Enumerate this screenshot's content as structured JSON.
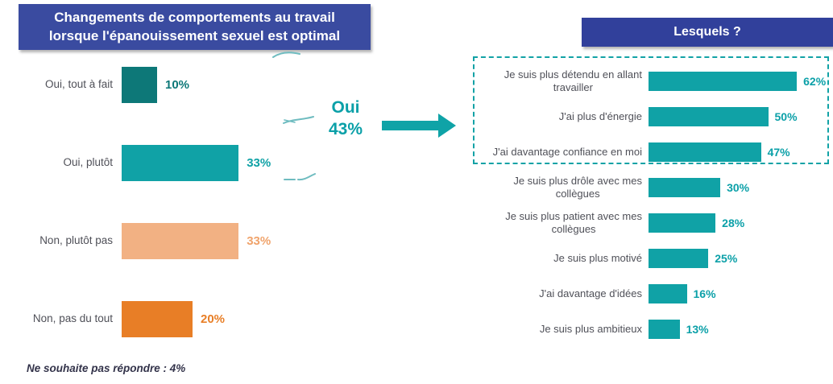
{
  "colors": {
    "header_blue_left": "#3a4ba0",
    "header_blue_right": "#31409b",
    "teal": "#10a2a6",
    "teal_text": "#0ba0a8",
    "dark_teal": "#0d7878",
    "light_orange": "#f2b183",
    "orange": "#e87e26",
    "label_gray": "#4f5058"
  },
  "left_chart": {
    "title_line1": "Changements de comportements au travail",
    "title_line2": "lorsque l'épanouissement sexuel est optimal",
    "bars": [
      {
        "label": "Oui, tout à fait",
        "value": 10,
        "value_label": "10%",
        "color": "#0d7878",
        "value_color": "#0d7878"
      },
      {
        "label": "Oui, plutôt",
        "value": 33,
        "value_label": "33%",
        "color": "#10a2a6",
        "value_color": "#10a2a6"
      },
      {
        "label": "Non, plutôt pas",
        "value": 33,
        "value_label": "33%",
        "color": "#f2b183",
        "value_color": "#f0a36b"
      },
      {
        "label": "Non, pas du tout",
        "value": 20,
        "value_label": "20%",
        "color": "#e87e26",
        "value_color": "#e87e26"
      }
    ],
    "footnote": "Ne souhaite pas répondre : 4%"
  },
  "connector": {
    "label_line1": "Oui",
    "label_line2": "43%"
  },
  "right_chart": {
    "title": "Lesquels ?",
    "bars": [
      {
        "label": [
          "Je suis plus détendu en allant",
          "travailler"
        ],
        "value": 62,
        "value_label": "62%"
      },
      {
        "label": "J'ai plus d'énergie",
        "value": 50,
        "value_label": "50%"
      },
      {
        "label": "J'ai davantage confiance en moi",
        "value": 47,
        "value_label": "47%"
      },
      {
        "label": [
          "Je suis plus drôle avec mes",
          "collègues"
        ],
        "value": 30,
        "value_label": "30%"
      },
      {
        "label": [
          "Je suis plus patient avec mes",
          "collègues"
        ],
        "value": 28,
        "value_label": "28%"
      },
      {
        "label": "Je suis plus motivé",
        "value": 25,
        "value_label": "25%"
      },
      {
        "label": "J'ai davantage d'idées",
        "value": 16,
        "value_label": "16%"
      },
      {
        "label": "Je suis plus ambitieux",
        "value": 13,
        "value_label": "13%"
      }
    ]
  },
  "chart_data": [
    {
      "type": "bar",
      "orientation": "horizontal",
      "title": "Changements de comportements au travail lorsque l'épanouissement sexuel est optimal",
      "categories": [
        "Oui, tout à fait",
        "Oui, plutôt",
        "Non, plutôt pas",
        "Non, pas du tout"
      ],
      "values": [
        10,
        33,
        33,
        20
      ],
      "unit": "%",
      "annotation": "Ne souhaite pas répondre : 4%",
      "highlight": "Oui 43% (somme des deux réponses Oui, flèche vers le second graphique)",
      "bar_colors": [
        "#0d7878",
        "#10a2a6",
        "#f2b183",
        "#e87e26"
      ],
      "grid": false,
      "legend": false
    },
    {
      "type": "bar",
      "orientation": "horizontal",
      "title": "Lesquels ?",
      "categories": [
        "Je suis plus détendu en allant travailler",
        "J'ai plus d'énergie",
        "J'ai davantage confiance en moi",
        "Je suis plus drôle avec mes collègues",
        "Je suis plus patient avec mes collègues",
        "Je suis plus motivé",
        "J'ai davantage d'idées",
        "Je suis plus ambitieux"
      ],
      "values": [
        62,
        50,
        47,
        30,
        28,
        25,
        16,
        13
      ],
      "unit": "%",
      "highlight": "Les 3 premières réponses sont encadrées par un cadre en pointillés",
      "bar_colors": [
        "#10a2a6"
      ],
      "grid": false,
      "legend": false
    }
  ]
}
